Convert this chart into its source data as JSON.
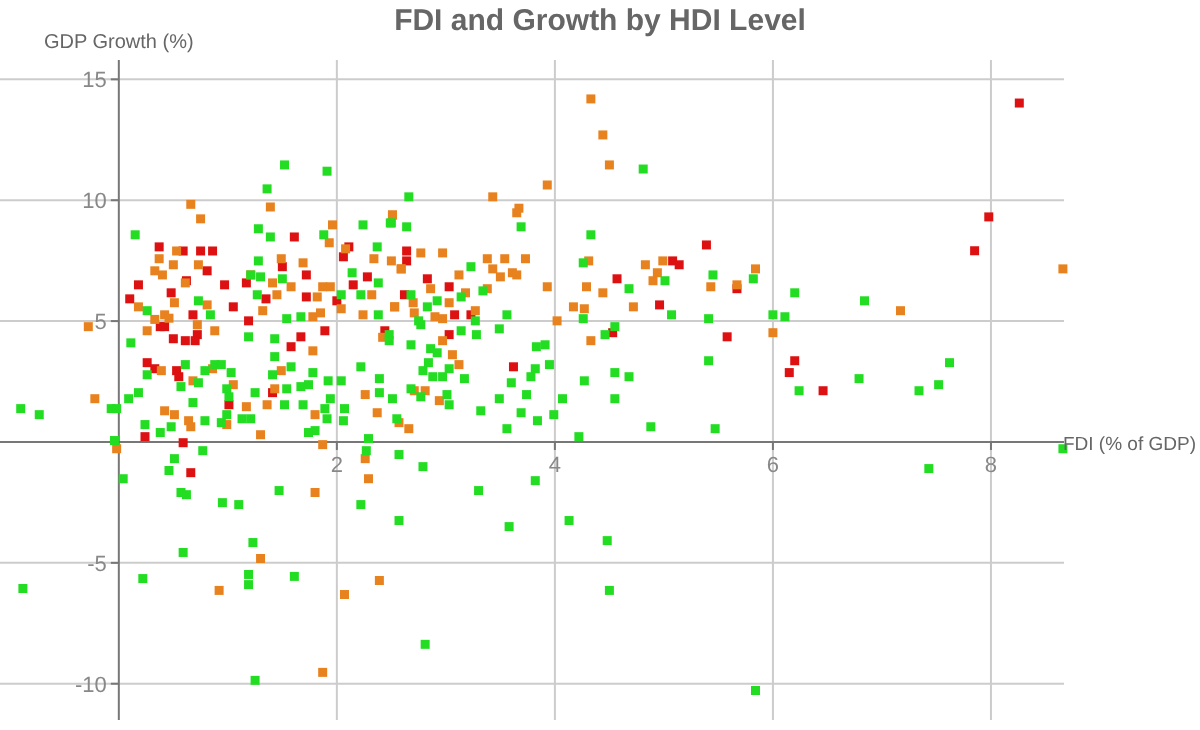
{
  "chart_data": {
    "type": "scatter",
    "title": "FDI and Growth by HDI Level",
    "xlabel": "FDI (% of GDP)",
    "ylabel": "GDP Growth (%)",
    "xlim": [
      -1.09,
      8.67
    ],
    "ylim": [
      -11.5,
      15.8
    ],
    "xticks": [
      2,
      4,
      6,
      8
    ],
    "yticks": [
      -10,
      -5,
      5,
      10,
      15
    ],
    "grid": true,
    "marker": "square",
    "series": [
      {
        "color": "#dd1111",
        "x": [
          1.61,
          0.37,
          0.59,
          0.75,
          0.86,
          0.81,
          1.5,
          2.06,
          2.11,
          2.28,
          0.18,
          0.62,
          0.48,
          0.97,
          1.17,
          1.72,
          0.1,
          1.05,
          1.35,
          1.72,
          2.0,
          2.15,
          0.68,
          1.19,
          1.89,
          0.42,
          0.38,
          0.72,
          0.5,
          0.61,
          0.7,
          1.67,
          1.58,
          5.39,
          2.64,
          2.64,
          5.08,
          5.14,
          5.67,
          4.57,
          2.83,
          3.03,
          2.62,
          3.08,
          3.23,
          4.96,
          4.53,
          5.58,
          3.03,
          2.44,
          8.26,
          7.98,
          7.85,
          0.26,
          0.33,
          0.24,
          0.59,
          0.53,
          0.55,
          1.01,
          1.41,
          0.66,
          3.62,
          6.2,
          6.15,
          6.46
        ],
        "values": [
          8.48,
          8.07,
          7.9,
          7.9,
          7.9,
          7.08,
          7.25,
          7.66,
          8.07,
          6.83,
          6.5,
          6.67,
          6.17,
          6.5,
          6.58,
          6.91,
          5.92,
          5.59,
          5.92,
          6.0,
          5.84,
          6.5,
          5.26,
          5.01,
          4.6,
          4.77,
          4.77,
          4.44,
          4.27,
          4.19,
          4.19,
          4.35,
          3.94,
          8.15,
          7.9,
          7.49,
          7.49,
          7.33,
          6.34,
          6.75,
          6.75,
          6.42,
          6.09,
          5.26,
          5.26,
          5.67,
          4.52,
          4.35,
          4.44,
          4.6,
          14.02,
          9.31,
          7.91,
          3.28,
          3.03,
          0.22,
          -0.03,
          2.95,
          2.7,
          1.54,
          2.04,
          -1.27,
          3.11,
          3.36,
          2.87,
          2.12
        ]
      },
      {
        "color": "#e8821e",
        "x": [
          0.66,
          0.75,
          1.39,
          1.96,
          1.93,
          2.51,
          0.53,
          0.37,
          0.33,
          0.4,
          0.5,
          0.73,
          1.49,
          1.69,
          2.08,
          2.34,
          2.59,
          1.21,
          0.61,
          1.41,
          1.58,
          0.18,
          0.51,
          0.81,
          1.45,
          1.82,
          1.87,
          1.94,
          2.04,
          2.32,
          2.53,
          -0.28,
          0.42,
          1.32,
          1.78,
          1.85,
          2.24,
          2.42,
          0.26,
          0.72,
          0.88,
          1.78,
          0.46,
          0.33,
          4.33,
          4.44,
          4.5,
          3.93,
          3.43,
          3.67,
          3.65,
          2.51,
          2.77,
          2.97,
          2.5,
          2.59,
          3.38,
          3.54,
          3.73,
          3.43,
          3.12,
          3.5,
          3.61,
          3.65,
          4.31,
          4.83,
          4.99,
          5.84,
          4.94,
          4.9,
          5.67,
          5.43,
          4.44,
          4.29,
          3.93,
          2.86,
          3.38,
          3.18,
          2.7,
          3.03,
          2.53,
          2.71,
          2.9,
          2.97,
          3.27,
          4.17,
          4.27,
          4.72,
          4.02,
          6.0,
          4.33,
          2.97,
          3.06,
          8.66,
          7.17,
          -0.22,
          0.39,
          0.68,
          0.42,
          0.51,
          0.64,
          0.66,
          1.05,
          0.86,
          0.99,
          1.3,
          1.17,
          1.36,
          1.49,
          1.43,
          1.8,
          2.26,
          2.37,
          1.87,
          2.26,
          2.29,
          1.8,
          -0.02,
          1.3,
          0.92,
          2.39,
          2.07,
          1.87,
          3.12,
          2.94,
          2.81,
          2.71,
          2.57,
          2.66
        ],
        "values": [
          9.83,
          9.23,
          9.72,
          8.98,
          8.24,
          9.39,
          7.9,
          7.58,
          7.08,
          6.91,
          7.33,
          7.33,
          7.58,
          7.41,
          7.99,
          7.58,
          7.16,
          6.91,
          6.58,
          6.58,
          6.42,
          5.59,
          5.76,
          5.67,
          6.09,
          6.0,
          6.42,
          6.42,
          5.51,
          6.09,
          5.59,
          4.77,
          5.26,
          5.43,
          5.18,
          5.34,
          5.26,
          4.33,
          4.6,
          4.85,
          4.6,
          3.77,
          5.12,
          5.07,
          14.19,
          12.7,
          11.46,
          10.63,
          10.14,
          9.67,
          9.48,
          9.39,
          7.82,
          7.82,
          7.49,
          7.16,
          7.58,
          7.58,
          7.58,
          7.16,
          6.91,
          6.83,
          7.0,
          6.91,
          7.49,
          7.33,
          7.49,
          7.16,
          7.0,
          6.67,
          6.5,
          6.42,
          6.17,
          6.42,
          6.42,
          6.34,
          6.34,
          6.17,
          5.76,
          5.76,
          5.59,
          5.34,
          5.18,
          5.1,
          5.43,
          5.59,
          5.51,
          5.59,
          5.01,
          4.52,
          4.19,
          4.19,
          3.61,
          7.16,
          5.43,
          1.79,
          2.95,
          2.53,
          1.29,
          1.13,
          0.88,
          0.63,
          2.37,
          3.03,
          0.72,
          0.3,
          1.46,
          1.54,
          2.95,
          2.2,
          1.13,
          1.96,
          1.21,
          -0.11,
          -0.69,
          -1.52,
          -2.09,
          -0.28,
          -4.82,
          -6.14,
          -5.73,
          -6.31,
          -9.53,
          3.2,
          1.71,
          2.12,
          2.12,
          0.8,
          0.55
        ]
      },
      {
        "color": "#22dd22",
        "x": [
          1.52,
          1.91,
          1.36,
          0.15,
          1.28,
          1.39,
          1.88,
          2.24,
          2.5,
          1.28,
          2.14,
          2.37,
          1.21,
          1.3,
          1.5,
          0.73,
          1.27,
          2.04,
          2.22,
          2.38,
          0.26,
          0.84,
          1.54,
          1.67,
          2.38,
          2.48,
          1.19,
          1.43,
          0.11,
          4.81,
          3.69,
          2.66,
          2.49,
          2.64,
          4.33,
          3.23,
          4.26,
          5.45,
          5.01,
          5.82,
          4.68,
          2.68,
          3.34,
          3.14,
          2.92,
          2.83,
          3.56,
          3.27,
          5.07,
          5.41,
          6.0,
          4.26,
          4.55,
          4.46,
          3.49,
          3.83,
          3.91,
          3.28,
          3.14,
          2.92,
          2.86,
          2.77,
          2.75,
          2.48,
          2.68,
          6.2,
          6.84,
          6.11,
          -0.9,
          -0.73,
          -0.07,
          -0.02,
          0.09,
          0.18,
          0.26,
          0.24,
          0.38,
          0.48,
          0.57,
          0.61,
          0.68,
          0.79,
          0.73,
          0.79,
          0.88,
          0.94,
          1.03,
          0.99,
          1.01,
          0.99,
          0.94,
          1.13,
          1.21,
          1.25,
          1.52,
          1.41,
          1.43,
          1.58,
          1.54,
          1.67,
          1.74,
          1.78,
          1.69,
          1.89,
          1.74,
          1.8,
          1.91,
          1.94,
          2.07,
          2.06,
          1.92,
          2.04,
          2.22,
          2.39,
          2.39,
          2.29,
          2.27,
          2.57,
          2.22,
          1.47,
          1.1,
          0.95,
          0.62,
          0.57,
          0.46,
          0.51,
          0.77,
          0.04,
          -0.04,
          -0.88,
          0.22,
          0.59,
          1.23,
          1.19,
          1.19,
          1.61,
          1.25,
          2.57,
          5.41,
          4.55,
          4.68,
          4.27,
          4.55,
          4.88,
          5.47,
          4.22,
          4.07,
          3.99,
          3.84,
          3.69,
          3.56,
          3.74,
          3.78,
          3.82,
          3.95,
          3.6,
          3.49,
          3.32,
          3.17,
          3.03,
          2.97,
          2.88,
          2.79,
          2.84,
          3.01,
          3.03,
          2.68,
          2.77,
          2.51,
          2.55,
          2.79,
          3.3,
          3.82,
          3.58,
          4.13,
          4.48,
          4.5,
          2.81,
          5.84,
          6.24,
          6.79,
          7.34,
          7.52,
          7.62,
          7.43,
          8.66
        ],
        "values": [
          11.46,
          11.2,
          10.47,
          8.57,
          8.82,
          8.48,
          8.57,
          8.98,
          9.06,
          7.49,
          7.0,
          8.07,
          6.91,
          6.83,
          6.75,
          5.84,
          6.09,
          6.09,
          6.09,
          6.58,
          5.43,
          5.26,
          5.1,
          5.18,
          5.26,
          4.44,
          4.35,
          4.27,
          4.1,
          11.29,
          8.9,
          10.14,
          9.06,
          8.9,
          8.57,
          7.25,
          7.41,
          6.91,
          6.67,
          6.75,
          6.34,
          6.09,
          6.25,
          6.0,
          5.84,
          5.59,
          5.26,
          5.01,
          5.26,
          5.1,
          5.26,
          5.1,
          4.77,
          4.44,
          4.68,
          3.94,
          4.02,
          4.44,
          4.6,
          3.69,
          3.86,
          4.85,
          5.01,
          4.19,
          4.02,
          6.17,
          5.84,
          5.18,
          1.38,
          1.13,
          1.38,
          1.38,
          1.79,
          2.04,
          2.78,
          0.72,
          0.39,
          0.63,
          2.29,
          3.2,
          1.63,
          0.88,
          2.45,
          2.95,
          3.2,
          3.2,
          2.87,
          2.2,
          1.87,
          1.13,
          0.8,
          0.96,
          0.96,
          2.04,
          1.54,
          2.78,
          3.53,
          3.11,
          2.2,
          2.29,
          2.37,
          2.87,
          1.54,
          1.38,
          0.39,
          0.47,
          0.96,
          1.79,
          1.38,
          0.88,
          2.53,
          2.53,
          3.11,
          2.62,
          2.04,
          0.14,
          -0.36,
          -0.52,
          -2.59,
          -2.01,
          -2.59,
          -2.51,
          -2.18,
          -2.09,
          -1.18,
          -0.69,
          -0.36,
          -1.52,
          0.06,
          -6.06,
          -5.65,
          -4.57,
          -4.16,
          -5.48,
          -5.9,
          -5.56,
          -9.86,
          -3.25,
          3.36,
          2.87,
          2.7,
          2.53,
          1.79,
          0.63,
          0.55,
          0.22,
          1.79,
          1.13,
          0.88,
          1.21,
          0.55,
          1.96,
          2.7,
          3.03,
          3.2,
          2.45,
          1.79,
          1.29,
          2.62,
          3.03,
          2.7,
          2.7,
          2.95,
          3.28,
          1.96,
          1.54,
          2.2,
          1.87,
          1.79,
          0.96,
          -1.02,
          -2.01,
          -1.6,
          -3.5,
          -3.25,
          -4.08,
          -6.14,
          -8.37,
          -10.28,
          2.12,
          2.62,
          2.12,
          2.37,
          3.28,
          -1.1,
          -0.28
        ]
      }
    ]
  }
}
